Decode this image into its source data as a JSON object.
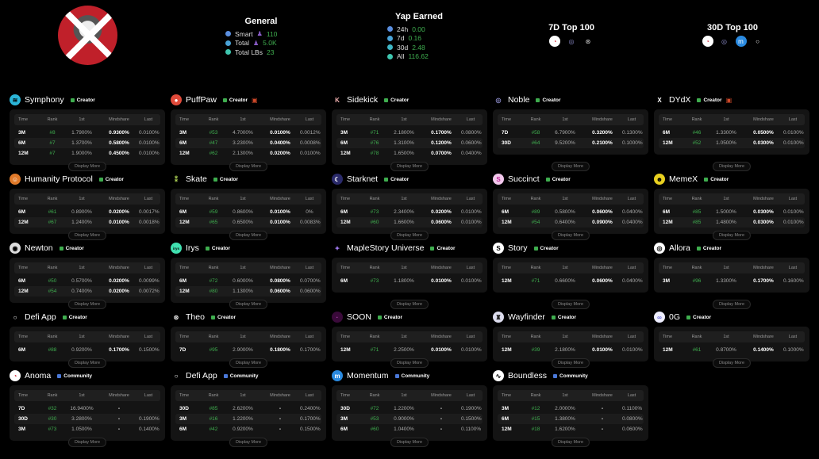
{
  "general": {
    "title": "General",
    "items": [
      {
        "label": "Smart",
        "value": "110",
        "color": "#5b8fe0",
        "person": true
      },
      {
        "label": "Total",
        "value": "5.0K",
        "color": "#4aa3d8",
        "person": true
      },
      {
        "label": "Total LBs",
        "value": "23",
        "color": "#3fc7b0",
        "person": false
      }
    ]
  },
  "yap": {
    "title": "Yap Earned",
    "items": [
      {
        "label": "24h",
        "value": "0.00",
        "color": "#5b8fe0"
      },
      {
        "label": "7d",
        "value": "0.16",
        "color": "#4aa3d8"
      },
      {
        "label": "30d",
        "value": "2.48",
        "color": "#3fb8c7"
      },
      {
        "label": "All",
        "value": "116.62",
        "color": "#3fc7b0"
      }
    ]
  },
  "top7": {
    "title": "7D Top 100",
    "icons": [
      "anoma-icon",
      "noble-icon",
      "theo-icon"
    ]
  },
  "top30": {
    "title": "30D Top 100",
    "icons": [
      "anoma-icon",
      "noble-icon",
      "momentum-icon",
      "defi-app-icon"
    ]
  },
  "columns": [
    "Time",
    "Rank",
    "1st",
    "Mindshare",
    "Last"
  ],
  "display_more": "Display More",
  "badge_colors": {
    "Creator": "#3fae4f",
    "Community": "#4a78d8"
  },
  "cards": [
    {
      "name": "Symphony",
      "badge": "Creator",
      "icon": "symphony-icon",
      "gift": false,
      "rows": [
        [
          "3M",
          "#8",
          "1.7900%",
          "0.9300%",
          "0.0100%"
        ],
        [
          "6M",
          "#7",
          "1.3700%",
          "0.5800%",
          "0.0100%"
        ],
        [
          "12M",
          "#7",
          "1.9000%",
          "0.4500%",
          "0.0100%"
        ]
      ]
    },
    {
      "name": "PuffPaw",
      "badge": "Creator",
      "icon": "puffpaw-icon",
      "gift": true,
      "rows": [
        [
          "3M",
          "#53",
          "4.7000%",
          "0.0100%",
          "0.0012%"
        ],
        [
          "6M",
          "#47",
          "3.2300%",
          "0.0400%",
          "0.0008%"
        ],
        [
          "12M",
          "#62",
          "2.1300%",
          "0.0200%",
          "0.0100%"
        ]
      ]
    },
    {
      "name": "Sidekick",
      "badge": "Creator",
      "icon": "sidekick-icon",
      "gift": false,
      "rows": [
        [
          "3M",
          "#71",
          "2.1800%",
          "0.1700%",
          "0.0800%"
        ],
        [
          "6M",
          "#76",
          "1.3100%",
          "0.1200%",
          "0.0600%"
        ],
        [
          "12M",
          "#78",
          "1.6500%",
          "0.0700%",
          "0.0400%"
        ]
      ]
    },
    {
      "name": "Noble",
      "badge": "Creator",
      "icon": "noble-icon",
      "gift": false,
      "rows": [
        [
          "7D",
          "#58",
          "6.7900%",
          "0.3200%",
          "0.1300%"
        ],
        [
          "30D",
          "#64",
          "9.5200%",
          "0.2100%",
          "0.1000%"
        ]
      ]
    },
    {
      "name": "DYdX",
      "badge": "Creator",
      "icon": "dydx-icon",
      "gift": true,
      "rows": [
        [
          "6M",
          "#46",
          "1.3300%",
          "0.0500%",
          "0.0100%"
        ],
        [
          "12M",
          "#52",
          "1.0500%",
          "0.0300%",
          "0.0100%"
        ]
      ]
    },
    {
      "name": "Humanity Protocol",
      "badge": "Creator",
      "icon": "humanity-protocol-icon",
      "gift": false,
      "rows": [
        [
          "6M",
          "#61",
          "0.8900%",
          "0.0200%",
          "0.0017%"
        ],
        [
          "12M",
          "#67",
          "1.2400%",
          "0.0100%",
          "0.0018%"
        ]
      ]
    },
    {
      "name": "Skate",
      "badge": "Creator",
      "icon": "skate-icon",
      "gift": false,
      "rows": [
        [
          "6M",
          "#59",
          "0.8600%",
          "0.0100%",
          "0%"
        ],
        [
          "12M",
          "#65",
          "0.6500%",
          "0.0100%",
          "0.0083%"
        ]
      ]
    },
    {
      "name": "Starknet",
      "badge": "Creator",
      "icon": "starknet-icon",
      "gift": false,
      "rows": [
        [
          "6M",
          "#73",
          "2.3400%",
          "0.0200%",
          "0.0100%"
        ],
        [
          "12M",
          "#60",
          "1.6600%",
          "0.0600%",
          "0.0100%"
        ]
      ]
    },
    {
      "name": "Succinct",
      "badge": "Creator",
      "icon": "succinct-icon",
      "gift": false,
      "rows": [
        [
          "6M",
          "#89",
          "0.5800%",
          "0.0600%",
          "0.0400%"
        ],
        [
          "12M",
          "#54",
          "0.6400%",
          "0.0900%",
          "0.0400%"
        ]
      ]
    },
    {
      "name": "MemeX",
      "badge": "Creator",
      "icon": "memex-icon",
      "gift": false,
      "rows": [
        [
          "6M",
          "#85",
          "1.5000%",
          "0.0300%",
          "0.0100%"
        ],
        [
          "12M",
          "#85",
          "1.4800%",
          "0.0300%",
          "0.0100%"
        ]
      ]
    },
    {
      "name": "Newton",
      "badge": "Creator",
      "icon": "newton-icon",
      "gift": false,
      "rows": [
        [
          "6M",
          "#50",
          "0.5700%",
          "0.0200%",
          "0.0099%"
        ],
        [
          "12M",
          "#54",
          "0.7400%",
          "0.0200%",
          "0.0072%"
        ]
      ]
    },
    {
      "name": "Irys",
      "badge": "Creator",
      "icon": "irys-icon",
      "gift": false,
      "rows": [
        [
          "6M",
          "#72",
          "0.6000%",
          "0.0800%",
          "0.0700%"
        ],
        [
          "12M",
          "#80",
          "1.1300%",
          "0.0600%",
          "0.0600%"
        ]
      ]
    },
    {
      "name": "MapleStory Universe",
      "badge": "Creator",
      "icon": "maplestory-universe-icon",
      "gift": false,
      "rows": [
        [
          "6M",
          "#73",
          "1.1800%",
          "0.0100%",
          "0.0100%"
        ]
      ]
    },
    {
      "name": "Story",
      "badge": "Creator",
      "icon": "story-icon",
      "gift": false,
      "rows": [
        [
          "12M",
          "#71",
          "0.6600%",
          "0.0600%",
          "0.0400%"
        ]
      ]
    },
    {
      "name": "Allora",
      "badge": "Creator",
      "icon": "allora-icon",
      "gift": false,
      "rows": [
        [
          "3M",
          "#96",
          "1.3300%",
          "0.1700%",
          "0.1600%"
        ]
      ]
    },
    {
      "name": "Defi App",
      "badge": "Creator",
      "icon": "defi-app-icon",
      "gift": false,
      "rows": [
        [
          "6M",
          "#88",
          "0.9200%",
          "0.1700%",
          "0.1500%"
        ]
      ]
    },
    {
      "name": "Theo",
      "badge": "Creator",
      "icon": "theo-icon",
      "gift": false,
      "rows": [
        [
          "7D",
          "#95",
          "2.9000%",
          "0.1800%",
          "0.1700%"
        ]
      ]
    },
    {
      "name": "SOON",
      "badge": "Creator",
      "icon": "soon-icon",
      "gift": false,
      "rows": [
        [
          "12M",
          "#71",
          "2.2500%",
          "0.0100%",
          "0.0100%"
        ]
      ]
    },
    {
      "name": "Wayfinder",
      "badge": "Creator",
      "icon": "wayfinder-icon",
      "gift": false,
      "rows": [
        [
          "12M",
          "#39",
          "2.1800%",
          "0.0100%",
          "0.0100%"
        ]
      ]
    },
    {
      "name": "0G",
      "badge": "Creator",
      "icon": "0g-icon",
      "gift": false,
      "rows": [
        [
          "12M",
          "#61",
          "0.8700%",
          "0.1400%",
          "0.1000%"
        ]
      ]
    },
    {
      "name": "Anoma",
      "badge": "Community",
      "icon": "anoma-icon",
      "gift": false,
      "rows": [
        [
          "7D",
          "#32",
          "16.9400%",
          "-",
          ""
        ],
        [
          "30D",
          "#30",
          "3.2800%",
          "-",
          "0.1900%"
        ],
        [
          "3M",
          "#73",
          "1.0500%",
          "-",
          "0.1400%"
        ]
      ]
    },
    {
      "name": "Defi App",
      "badge": "Community",
      "icon": "defi-app-icon",
      "gift": false,
      "rows": [
        [
          "30D",
          "#85",
          "2.6200%",
          "-",
          "0.2400%"
        ],
        [
          "3M",
          "#16",
          "1.2200%",
          "-",
          "0.1700%"
        ],
        [
          "6M",
          "#42",
          "0.9200%",
          "-",
          "0.1500%"
        ]
      ]
    },
    {
      "name": "Momentum",
      "badge": "Community",
      "icon": "momentum-icon",
      "gift": false,
      "rows": [
        [
          "30D",
          "#72",
          "1.2200%",
          "-",
          "0.1900%"
        ],
        [
          "3M",
          "#53",
          "0.9000%",
          "-",
          "0.1500%"
        ],
        [
          "6M",
          "#60",
          "1.0400%",
          "-",
          "0.1100%"
        ]
      ]
    },
    {
      "name": "Boundless",
      "badge": "Community",
      "icon": "boundless-icon",
      "gift": false,
      "rows": [
        [
          "3M",
          "#12",
          "2.0000%",
          "-",
          "0.1100%"
        ],
        [
          "6M",
          "#15",
          "1.3800%",
          "-",
          "0.0800%"
        ],
        [
          "12M",
          "#18",
          "1.6200%",
          "-",
          "0.0600%"
        ]
      ]
    }
  ]
}
